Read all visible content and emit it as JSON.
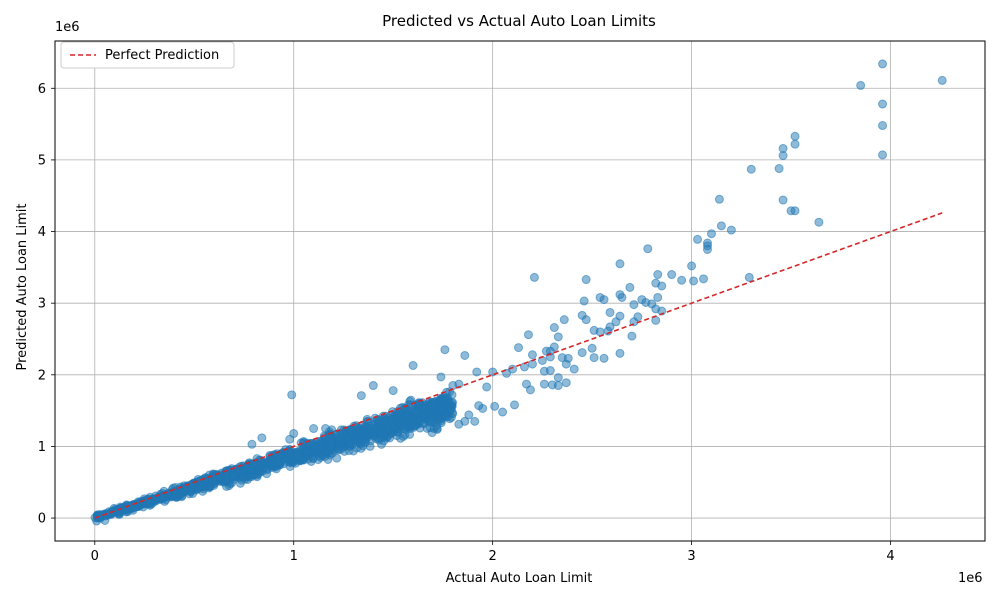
{
  "chart_data": {
    "type": "scatter",
    "title": "Predicted vs Actual Auto Loan Limits",
    "xlabel": "Actual Auto Loan Limit",
    "ylabel": "Predicted Auto Loan Limit",
    "x_offset_label": "1e6",
    "y_offset_label": "1e6",
    "xlim": [
      -200000,
      4475000
    ],
    "ylim": [
      -320000,
      6660000
    ],
    "x_ticks": [
      0,
      1000000,
      2000000,
      3000000,
      4000000
    ],
    "x_tick_labels": [
      "0",
      "1",
      "2",
      "3",
      "4"
    ],
    "y_ticks": [
      0,
      1000000,
      2000000,
      3000000,
      4000000,
      5000000,
      6000000
    ],
    "y_tick_labels": [
      "0",
      "1",
      "2",
      "3",
      "4",
      "5",
      "6"
    ],
    "grid": true,
    "legend": {
      "placement": "top-left",
      "entries": [
        "Perfect Prediction"
      ]
    },
    "colors": {
      "points": "#1f77b4",
      "reference_line": "#d62728",
      "grid": "#b0b0b0"
    },
    "series": [
      {
        "kind": "scatter",
        "points": [
          [
            3960000,
            6340000
          ],
          [
            4260000,
            6110000
          ],
          [
            3850000,
            6040000
          ],
          [
            3960000,
            5780000
          ],
          [
            3960000,
            5480000
          ],
          [
            3520000,
            5330000
          ],
          [
            3520000,
            5220000
          ],
          [
            3460000,
            5160000
          ],
          [
            3460000,
            5060000
          ],
          [
            3960000,
            5070000
          ],
          [
            3300000,
            4870000
          ],
          [
            3440000,
            4880000
          ],
          [
            3460000,
            4440000
          ],
          [
            3140000,
            4450000
          ],
          [
            3500000,
            4290000
          ],
          [
            3520000,
            4290000
          ],
          [
            3640000,
            4130000
          ],
          [
            3150000,
            4080000
          ],
          [
            3200000,
            4020000
          ],
          [
            3100000,
            3970000
          ],
          [
            3030000,
            3890000
          ],
          [
            3080000,
            3840000
          ],
          [
            3080000,
            3800000
          ],
          [
            3080000,
            3750000
          ],
          [
            2780000,
            3760000
          ],
          [
            2640000,
            3550000
          ],
          [
            3000000,
            3520000
          ],
          [
            2830000,
            3400000
          ],
          [
            2900000,
            3400000
          ],
          [
            2950000,
            3320000
          ],
          [
            2210000,
            3360000
          ],
          [
            2470000,
            3330000
          ],
          [
            3060000,
            3340000
          ],
          [
            3010000,
            3310000
          ],
          [
            3290000,
            3360000
          ],
          [
            2820000,
            3280000
          ],
          [
            2850000,
            3240000
          ],
          [
            2690000,
            3220000
          ],
          [
            2640000,
            3120000
          ],
          [
            2650000,
            3080000
          ],
          [
            2830000,
            3080000
          ],
          [
            2540000,
            3080000
          ],
          [
            2460000,
            3030000
          ],
          [
            2560000,
            3050000
          ],
          [
            2750000,
            3050000
          ],
          [
            2770000,
            3010000
          ],
          [
            2710000,
            2980000
          ],
          [
            2800000,
            2990000
          ],
          [
            2850000,
            2890000
          ],
          [
            2820000,
            2920000
          ],
          [
            2590000,
            2870000
          ],
          [
            2640000,
            2820000
          ],
          [
            2730000,
            2810000
          ],
          [
            2450000,
            2830000
          ],
          [
            2470000,
            2770000
          ],
          [
            2360000,
            2770000
          ],
          [
            2620000,
            2740000
          ],
          [
            2710000,
            2740000
          ],
          [
            2820000,
            2760000
          ],
          [
            2310000,
            2660000
          ],
          [
            2590000,
            2670000
          ],
          [
            2580000,
            2610000
          ],
          [
            2510000,
            2620000
          ],
          [
            2540000,
            2600000
          ],
          [
            2700000,
            2540000
          ],
          [
            2180000,
            2560000
          ],
          [
            2330000,
            2530000
          ],
          [
            2500000,
            2370000
          ],
          [
            2310000,
            2390000
          ],
          [
            2290000,
            2330000
          ],
          [
            2270000,
            2330000
          ],
          [
            2130000,
            2380000
          ],
          [
            2640000,
            2300000
          ],
          [
            2450000,
            2310000
          ],
          [
            2350000,
            2240000
          ],
          [
            2510000,
            2240000
          ],
          [
            2560000,
            2230000
          ],
          [
            2380000,
            2230000
          ],
          [
            2290000,
            2250000
          ],
          [
            2200000,
            2280000
          ],
          [
            2250000,
            2200000
          ],
          [
            2200000,
            2150000
          ],
          [
            2370000,
            2150000
          ],
          [
            2410000,
            2080000
          ],
          [
            2260000,
            2050000
          ],
          [
            2290000,
            2060000
          ],
          [
            2160000,
            2110000
          ],
          [
            2100000,
            2080000
          ],
          [
            2070000,
            2020000
          ],
          [
            2000000,
            2040000
          ],
          [
            1920000,
            2040000
          ],
          [
            1860000,
            2270000
          ],
          [
            1760000,
            2350000
          ],
          [
            1600000,
            2130000
          ],
          [
            2330000,
            1960000
          ],
          [
            2370000,
            1890000
          ],
          [
            2330000,
            1850000
          ],
          [
            2300000,
            1860000
          ],
          [
            2260000,
            1870000
          ],
          [
            2190000,
            1790000
          ],
          [
            2170000,
            1870000
          ],
          [
            2050000,
            1480000
          ],
          [
            2010000,
            1560000
          ],
          [
            1930000,
            1570000
          ],
          [
            1910000,
            1350000
          ],
          [
            1880000,
            1440000
          ],
          [
            1830000,
            1310000
          ],
          [
            1860000,
            1350000
          ],
          [
            1400000,
            1850000
          ],
          [
            1500000,
            1780000
          ],
          [
            1340000,
            1710000
          ],
          [
            990000,
            1720000
          ],
          [
            980000,
            1100000
          ],
          [
            1000000,
            1180000
          ],
          [
            840000,
            1120000
          ],
          [
            790000,
            1030000
          ],
          [
            1100000,
            1250000
          ],
          [
            1160000,
            1250000
          ],
          [
            1740000,
            1970000
          ],
          [
            1830000,
            1870000
          ],
          [
            1800000,
            1850000
          ],
          [
            1950000,
            1530000
          ],
          [
            1970000,
            1830000
          ],
          [
            2110000,
            1580000
          ]
        ],
        "dense_band": {
          "comment": "Dense overplotted region along slightly-below-diagonal trend",
          "x_range": [
            0,
            1800000
          ],
          "slope_predicted_over_actual": 0.87,
          "approx_points": 1400
        }
      },
      {
        "name": "Perfect Prediction",
        "kind": "line",
        "x": [
          0,
          4260000
        ],
        "y": [
          0,
          4260000
        ]
      }
    ]
  }
}
